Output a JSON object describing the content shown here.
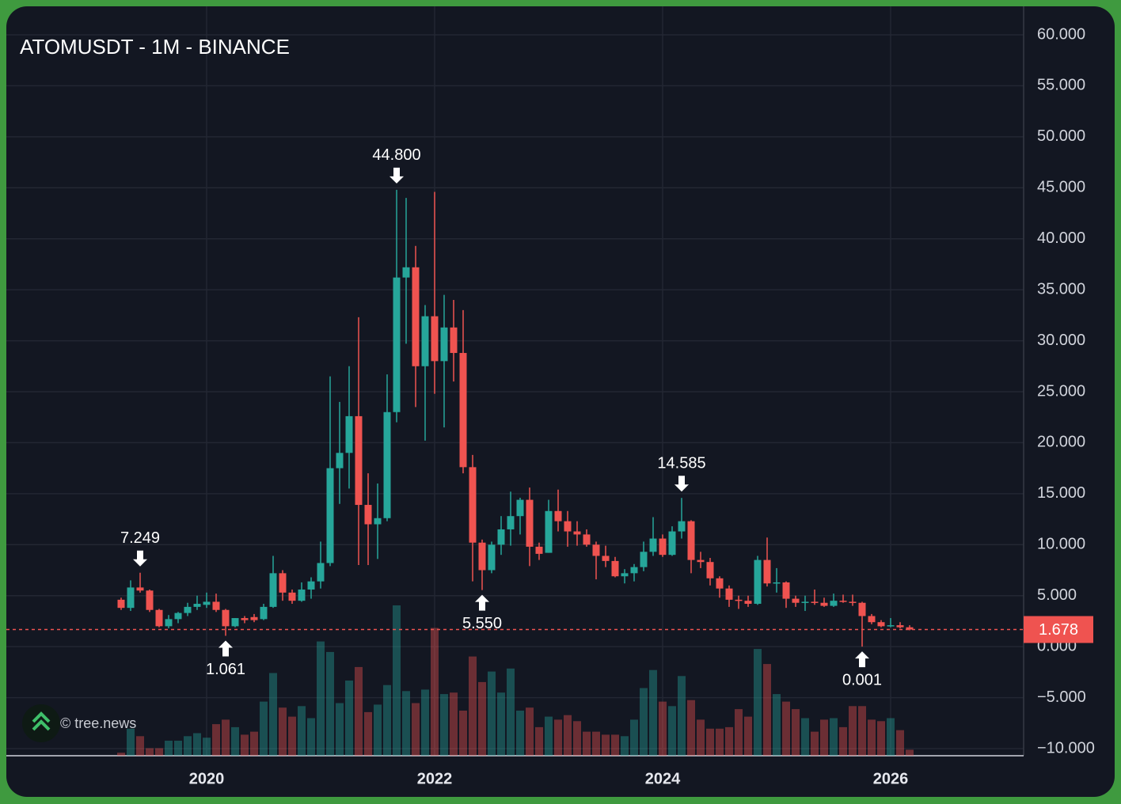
{
  "chart_data": {
    "type": "candlestick",
    "title": "ATOMUSDT - 1M - BINANCE",
    "watermark": "© tree.news",
    "x": [
      "2019-04",
      "2019-05",
      "2019-06",
      "2019-07",
      "2019-08",
      "2019-09",
      "2019-10",
      "2019-11",
      "2019-12",
      "2020-01",
      "2020-02",
      "2020-03",
      "2020-04",
      "2020-05",
      "2020-06",
      "2020-07",
      "2020-08",
      "2020-09",
      "2020-10",
      "2020-11",
      "2020-12",
      "2021-01",
      "2021-02",
      "2021-03",
      "2021-04",
      "2021-05",
      "2021-06",
      "2021-07",
      "2021-08",
      "2021-09",
      "2021-10",
      "2021-11",
      "2021-12",
      "2022-01",
      "2022-02",
      "2022-03",
      "2022-04",
      "2022-05",
      "2022-06",
      "2022-07",
      "2022-08",
      "2022-09",
      "2022-10",
      "2022-11",
      "2022-12",
      "2023-01",
      "2023-02",
      "2023-03",
      "2023-04",
      "2023-05",
      "2023-06",
      "2023-07",
      "2023-08",
      "2023-09",
      "2023-10",
      "2023-11",
      "2023-12",
      "2024-01",
      "2024-02",
      "2024-03",
      "2024-04",
      "2024-05",
      "2024-06",
      "2024-07",
      "2024-08",
      "2024-09",
      "2024-10",
      "2024-11",
      "2024-12",
      "2025-01",
      "2025-02",
      "2025-03",
      "2025-04",
      "2025-05",
      "2025-06",
      "2025-07",
      "2025-08",
      "2025-09",
      "2025-10",
      "2025-11",
      "2025-12",
      "2026-01",
      "2026-02",
      "2026-03"
    ],
    "open": [
      4.6,
      3.8,
      5.8,
      5.5,
      3.6,
      2.0,
      2.7,
      3.3,
      3.9,
      4.1,
      4.4,
      3.6,
      2.0,
      2.8,
      2.9,
      2.7,
      3.9,
      7.2,
      5.3,
      4.5,
      5.6,
      6.4,
      8.2,
      17.5,
      19.0,
      22.6,
      13.9,
      12.0,
      12.6,
      23.0,
      36.2,
      37.2,
      27.5,
      32.4,
      28.0,
      31.3,
      28.8,
      17.6,
      10.2,
      7.5,
      10.0,
      11.5,
      12.8,
      14.4,
      9.8,
      9.2,
      13.3,
      12.3,
      11.3,
      11.0,
      10.0,
      8.9,
      8.4,
      6.9,
      7.2,
      7.8,
      9.3,
      10.6,
      9.0,
      11.3,
      12.3,
      8.5,
      8.3,
      6.7,
      5.7,
      4.6,
      4.5,
      4.2,
      8.5,
      6.2,
      6.3,
      4.7,
      4.3,
      4.4,
      4.3,
      4.0,
      4.5,
      4.4,
      4.3,
      3.0,
      2.4,
      2.0,
      2.1,
      1.9
    ],
    "high": [
      4.8,
      6.5,
      7.249,
      5.6,
      3.7,
      3.1,
      3.4,
      4.3,
      5.0,
      5.3,
      5.2,
      3.7,
      2.8,
      3.0,
      3.2,
      4.2,
      8.9,
      7.5,
      5.6,
      6.3,
      6.8,
      10.3,
      26.5,
      24.0,
      27.5,
      32.3,
      17.0,
      16.0,
      26.7,
      44.8,
      44.0,
      39.3,
      33.5,
      44.6,
      34.5,
      34.0,
      33.0,
      18.8,
      10.5,
      10.3,
      12.8,
      15.2,
      14.6,
      15.6,
      10.2,
      14.4,
      15.4,
      13.3,
      12.3,
      11.5,
      10.3,
      9.9,
      8.8,
      7.6,
      8.1,
      10.3,
      12.7,
      11.0,
      11.8,
      14.585,
      12.4,
      9.3,
      8.7,
      6.9,
      6.0,
      5.0,
      5.0,
      8.9,
      10.7,
      7.7,
      6.4,
      5.0,
      5.0,
      5.6,
      4.8,
      5.2,
      5.1,
      5.1,
      4.4,
      3.2,
      2.6,
      2.8,
      2.4,
      2.1
    ],
    "low": [
      3.6,
      3.5,
      5.3,
      3.4,
      1.9,
      1.8,
      2.3,
      3.0,
      3.6,
      3.8,
      3.4,
      1.061,
      1.9,
      2.3,
      2.4,
      2.6,
      3.8,
      4.5,
      4.2,
      4.4,
      4.7,
      5.7,
      7.9,
      14.0,
      15.5,
      8.0,
      8.0,
      8.6,
      12.3,
      22.0,
      29.7,
      23.5,
      20.2,
      24.8,
      21.5,
      26.0,
      17.0,
      6.4,
      5.55,
      7.2,
      9.0,
      9.9,
      11.0,
      7.9,
      8.5,
      9.2,
      11.3,
      9.8,
      9.9,
      9.8,
      6.6,
      7.8,
      6.8,
      6.2,
      6.4,
      7.4,
      8.9,
      8.8,
      8.9,
      10.6,
      7.2,
      7.7,
      6.0,
      4.8,
      3.9,
      3.7,
      3.9,
      4.1,
      5.9,
      5.3,
      3.8,
      3.9,
      3.5,
      4.1,
      3.9,
      3.9,
      4.3,
      4.0,
      0.001,
      2.2,
      1.9,
      1.9,
      1.8,
      1.6
    ],
    "close": [
      3.8,
      5.8,
      5.5,
      3.6,
      2.0,
      2.7,
      3.3,
      3.9,
      4.2,
      4.4,
      3.6,
      2.0,
      2.8,
      2.6,
      2.6,
      3.9,
      7.2,
      5.3,
      4.5,
      5.6,
      6.4,
      8.2,
      17.5,
      19.0,
      22.6,
      13.9,
      12.0,
      12.6,
      23.0,
      36.2,
      37.2,
      27.5,
      32.4,
      28.0,
      31.3,
      28.8,
      17.6,
      10.2,
      7.5,
      10.0,
      11.5,
      12.8,
      14.4,
      9.8,
      9.1,
      13.3,
      12.3,
      11.3,
      11.0,
      10.0,
      8.9,
      8.4,
      6.9,
      7.2,
      7.8,
      9.3,
      10.6,
      9.0,
      11.3,
      12.3,
      8.5,
      8.3,
      6.7,
      5.7,
      4.6,
      4.5,
      4.2,
      8.5,
      6.2,
      6.3,
      4.7,
      4.3,
      4.4,
      4.3,
      4.0,
      4.5,
      4.4,
      4.3,
      3.0,
      2.4,
      2.0,
      2.1,
      1.9,
      1.678
    ],
    "volume": [
      2,
      18,
      13,
      5,
      5,
      10,
      10,
      13,
      15,
      12,
      21,
      24,
      19,
      14,
      16,
      36,
      55,
      32,
      26,
      33,
      25,
      76,
      69,
      35,
      50,
      59,
      29,
      34,
      47,
      100,
      43,
      35,
      44,
      85,
      41,
      42,
      30,
      66,
      49,
      56,
      42,
      58,
      30,
      32,
      19,
      26,
      24,
      27,
      23,
      16,
      16,
      14,
      14,
      13,
      24,
      45,
      57,
      36,
      33,
      53,
      37,
      24,
      18,
      18,
      19,
      31,
      26,
      71,
      61,
      41,
      36,
      31,
      25,
      16,
      24,
      25,
      19,
      33,
      33,
      24,
      23,
      25,
      17,
      4
    ],
    "up_color": "#26a69a",
    "down_color": "#ef5350",
    "xlim": [
      "2018-04",
      "2027-03"
    ],
    "xticks": [
      {
        "value": "2020-01",
        "label": "2020"
      },
      {
        "value": "2022-01",
        "label": "2022"
      },
      {
        "value": "2024-01",
        "label": "2024"
      },
      {
        "value": "2026-01",
        "label": "2026"
      }
    ],
    "ylim": [
      -10,
      60
    ],
    "yticks": [
      {
        "value": 60,
        "label": "60.000"
      },
      {
        "value": 55,
        "label": "55.000"
      },
      {
        "value": 50,
        "label": "50.000"
      },
      {
        "value": 45,
        "label": "45.000"
      },
      {
        "value": 40,
        "label": "40.000"
      },
      {
        "value": 35,
        "label": "35.000"
      },
      {
        "value": 30,
        "label": "30.000"
      },
      {
        "value": 25,
        "label": "25.000"
      },
      {
        "value": 20,
        "label": "20.000"
      },
      {
        "value": 15,
        "label": "15.000"
      },
      {
        "value": 10,
        "label": "10.000"
      },
      {
        "value": 5,
        "label": "5.000"
      },
      {
        "value": 0,
        "label": "0.000"
      },
      {
        "value": -5,
        "label": "−5.000"
      },
      {
        "value": -10,
        "label": "−10.000"
      }
    ],
    "grid": true,
    "last_price": {
      "value": 1.678,
      "label": "1.678"
    },
    "annotations": [
      {
        "x": "2019-06",
        "value": 7.249,
        "label": "7.249",
        "position": "above"
      },
      {
        "x": "2020-03",
        "value": 1.061,
        "label": "1.061",
        "position": "below"
      },
      {
        "x": "2021-09",
        "value": 44.8,
        "label": "44.800",
        "position": "above"
      },
      {
        "x": "2022-06",
        "value": 5.55,
        "label": "5.550",
        "position": "below"
      },
      {
        "x": "2024-03",
        "value": 14.585,
        "label": "14.585",
        "position": "above"
      },
      {
        "x": "2025-10",
        "value": 0.001,
        "label": "0.001",
        "position": "below"
      }
    ]
  }
}
